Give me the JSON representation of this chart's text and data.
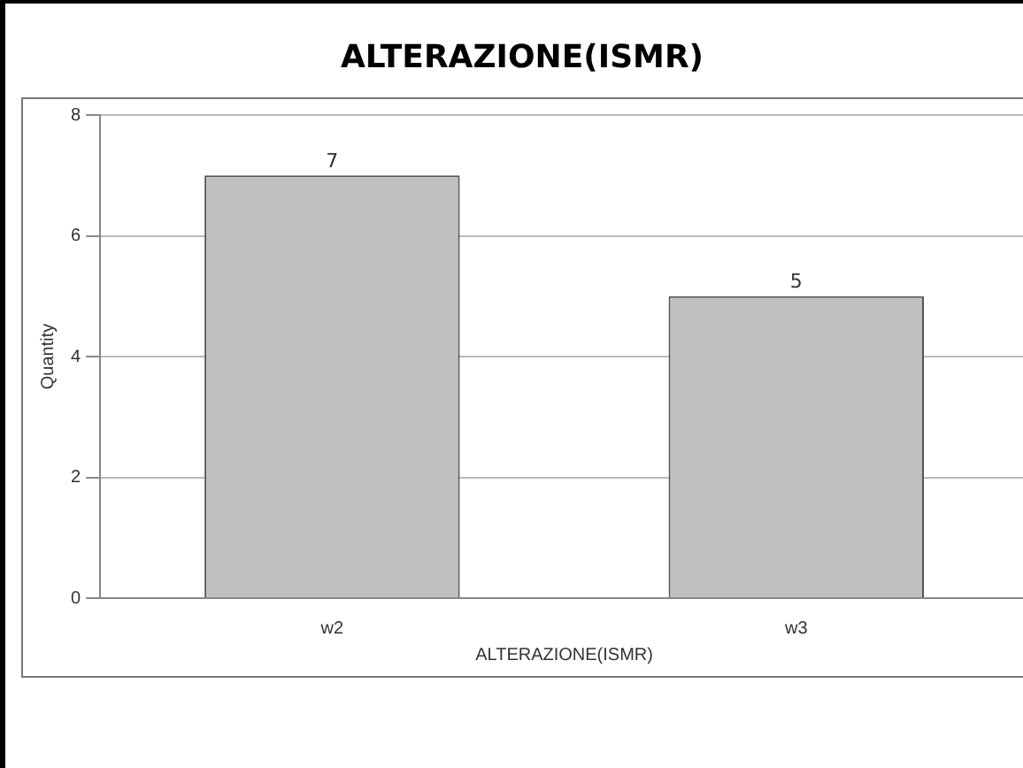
{
  "chart_data": {
    "type": "bar",
    "title": "ALTERAZIONE(ISMR)",
    "xlabel": "ALTERAZIONE(ISMR)",
    "ylabel": "Quantity",
    "categories": [
      "w2",
      "w3"
    ],
    "values": [
      7,
      5
    ],
    "color": "#c0c0c0",
    "ylim": [
      0,
      8
    ],
    "yticks": [
      0,
      2,
      4,
      6,
      8
    ],
    "grid": "y",
    "legend": false,
    "data_labels": true
  }
}
